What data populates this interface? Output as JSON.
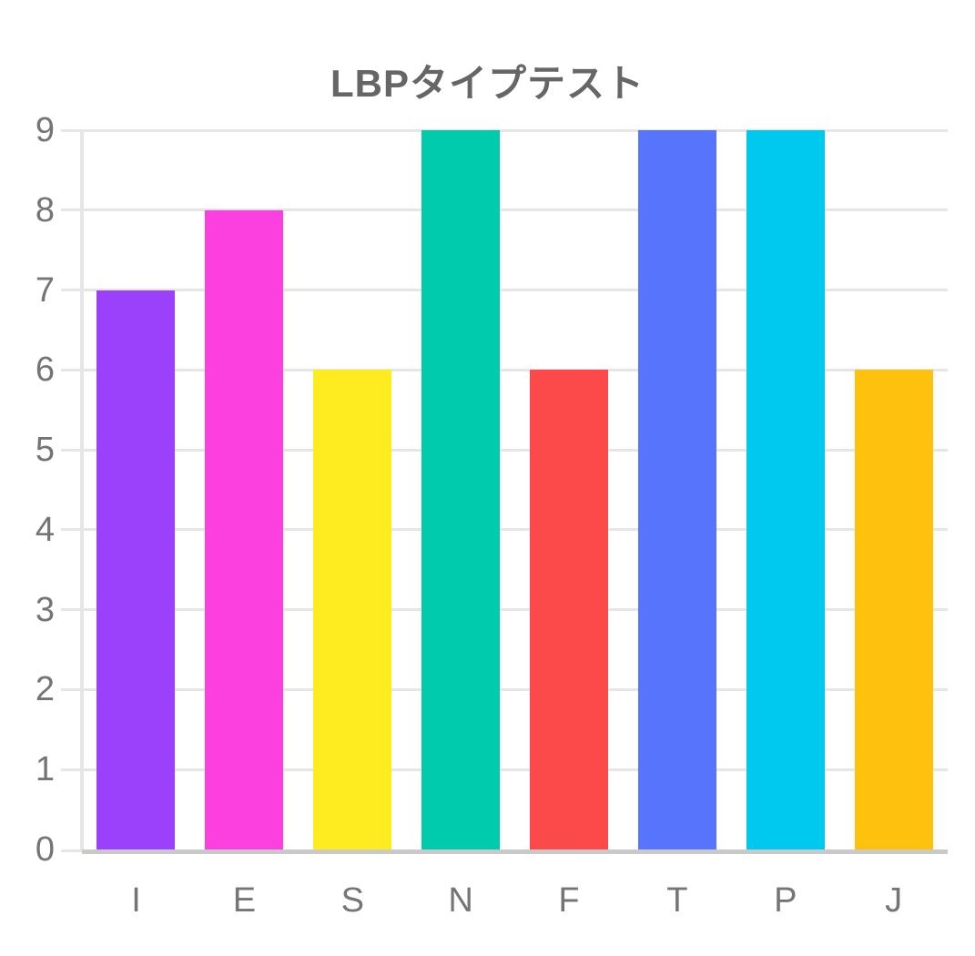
{
  "chart_data": {
    "type": "bar",
    "title": "LBPタイプテスト",
    "categories": [
      "I",
      "E",
      "S",
      "N",
      "F",
      "T",
      "P",
      "J"
    ],
    "values": [
      7,
      8,
      6,
      9,
      6,
      9,
      9,
      6
    ],
    "bar_colors": [
      "#9B41FC",
      "#FC40DF",
      "#FFEC20",
      "#00CBAD",
      "#FC4A4A",
      "#5674FC",
      "#00C9F0",
      "#FEC10D"
    ],
    "xlabel": "",
    "ylabel": "",
    "ylim": [
      0,
      9
    ],
    "y_ticks": [
      0,
      1,
      2,
      3,
      4,
      5,
      6,
      7,
      8,
      9
    ],
    "grid": "horizontal-only",
    "legend": "none",
    "colors": {
      "title_text": "#666666",
      "axis_tick_text": "#757575",
      "gridline": "#E6E6E6",
      "zero_line": "#C9C9C9",
      "background": "#FFFFFF"
    }
  }
}
